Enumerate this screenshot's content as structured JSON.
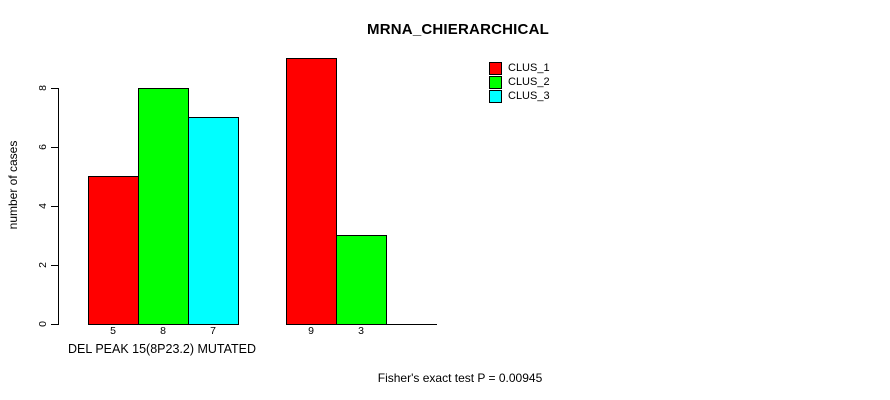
{
  "page": {
    "background": "#FFFFFF",
    "text_color": "#000000"
  },
  "chart_data": {
    "type": "bar",
    "title": "MRNA_CHIERARCHICAL",
    "xlabel": "DEL PEAK 15(8P23.2) MUTATED",
    "ylabel": "number of cases",
    "ylim": [
      0,
      9.4
    ],
    "yticks": [
      0,
      2,
      4,
      6,
      8
    ],
    "grid": false,
    "bar_borders": "#000000",
    "legend_position": "top-right",
    "legend": [
      {
        "label": "CLUS_1",
        "color": "#FF0000"
      },
      {
        "label": "CLUS_2",
        "color": "#00FF00"
      },
      {
        "label": "CLUS_3",
        "color": "#00FFFF"
      }
    ],
    "groups": [
      {
        "bars": [
          {
            "series": "CLUS_1",
            "value": 5,
            "label": "5",
            "color": "#FF0000"
          },
          {
            "series": "CLUS_2",
            "value": 8,
            "label": "8",
            "color": "#00FF00"
          },
          {
            "series": "CLUS_3",
            "value": 7,
            "label": "7",
            "color": "#00FFFF"
          }
        ]
      },
      {
        "bars": [
          {
            "series": "CLUS_1",
            "value": 9,
            "label": "9",
            "color": "#FF0000"
          },
          {
            "series": "CLUS_2",
            "value": 3,
            "label": "3",
            "color": "#00FF00"
          },
          {
            "series": "CLUS_3",
            "value": 0,
            "label": "",
            "color": "#00FFFF"
          }
        ]
      }
    ],
    "annotation": "Fisher's exact test P = 0.00945"
  }
}
